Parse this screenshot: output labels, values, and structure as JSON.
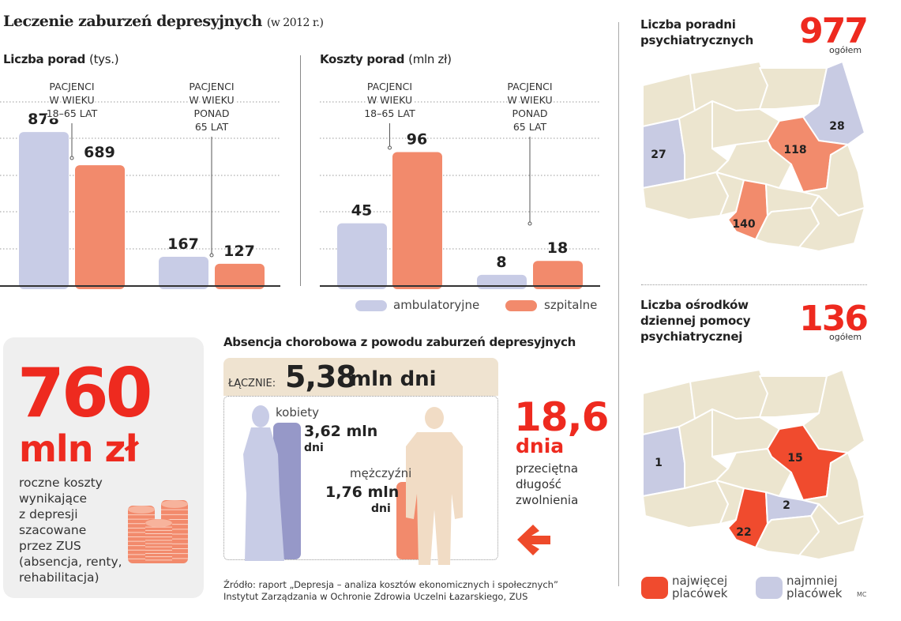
{
  "title": {
    "main": "Leczenie zaburzeń depresyjnych",
    "sub": "(w 2012 r.)"
  },
  "colors": {
    "ambulatory": "#c8cce6",
    "hospital": "#f28a6c",
    "accent_red": "#ee2a1f",
    "map_base": "#ece5cf",
    "map_low": "#c8cbe3",
    "map_high_1": "#f28b6c",
    "map_high_2": "#f04b2e"
  },
  "chart_data": [
    {
      "type": "bar",
      "title": "Liczba porad",
      "unit": "(tys.)",
      "categories": [
        [
          "PACJENCI",
          "W WIEKU",
          "18–65 LAT"
        ],
        [
          "PACJENCI",
          "W WIEKU",
          "PONAD",
          "65 LAT"
        ]
      ],
      "series": [
        {
          "name": "ambulatoryjne",
          "values": [
            878,
            167
          ]
        },
        {
          "name": "szpitalne",
          "values": [
            689,
            127
          ]
        }
      ],
      "ylim": [
        0,
        1050
      ],
      "grid": true
    },
    {
      "type": "bar",
      "title": "Koszty porad",
      "unit": "(mln zł)",
      "categories": [
        [
          "PACJENCI",
          "W WIEKU",
          "18–65 LAT"
        ],
        [
          "PACJENCI",
          "W WIEKU",
          "PONAD",
          "65 LAT"
        ]
      ],
      "series": [
        {
          "name": "ambulatoryjne",
          "values": [
            45,
            8
          ]
        },
        {
          "name": "szpitalne",
          "values": [
            96,
            18
          ]
        }
      ],
      "ylim": [
        0,
        132
      ],
      "grid": true
    }
  ],
  "legend": {
    "ambulatory": "ambulatoryjne",
    "hospital": "szpitalne",
    "placement": "bottom-right"
  },
  "cost_card": {
    "value": "760",
    "unit": "mln zł",
    "desc": [
      "roczne koszty",
      "wynikające",
      "z depresji",
      "szacowane",
      "przez ZUS",
      "(absencja, renty,",
      "rehabilitacja)"
    ],
    "icon": "coin-stacks-icon"
  },
  "absence": {
    "title": "Absencja chorobowa z powodu zaburzeń depresyjnych",
    "total_label": "ŁĄCZNIE:",
    "total_value": "5,38",
    "total_unit": "mln dni",
    "women": {
      "label": "kobiety",
      "value": "3,62 mln",
      "unit": "dni",
      "millions_days": 3.62
    },
    "men": {
      "label": "mężczyźni",
      "value": "1,76 mln",
      "unit": "dni",
      "millions_days": 1.76
    },
    "avg_value": "18,6",
    "avg_unit": "dnia",
    "avg_desc": [
      "przeciętna",
      "długość",
      "zwolnienia"
    ]
  },
  "source": [
    "Źródło: raport „Depresja – analiza kosztów ekonomicznych i społecznych”",
    "Instytut Zarządzania w Ochronie Zdrowia Uczelni Łazarskiego, ZUS"
  ],
  "map1": {
    "title": [
      "Liczba poradni",
      "psychiatrycznych"
    ],
    "total": "977",
    "total_label": "ogółem",
    "labels": {
      "lubuskie": "27",
      "podlaskie": "28",
      "mazowieckie": "118",
      "slaskie": "140"
    }
  },
  "map2": {
    "title": [
      "Liczba ośrodków",
      "dziennej pomocy",
      "psychiatrycznej"
    ],
    "total": "136",
    "total_label": "ogółem",
    "labels": {
      "lubuskie": "1",
      "mazowieckie": "15",
      "swietokrzyskie": "2",
      "slaskie": "22"
    }
  },
  "map_legend": {
    "most": [
      "najwięcej",
      "placówek"
    ],
    "least": [
      "najmniej",
      "placówek"
    ]
  },
  "credit": "MC"
}
